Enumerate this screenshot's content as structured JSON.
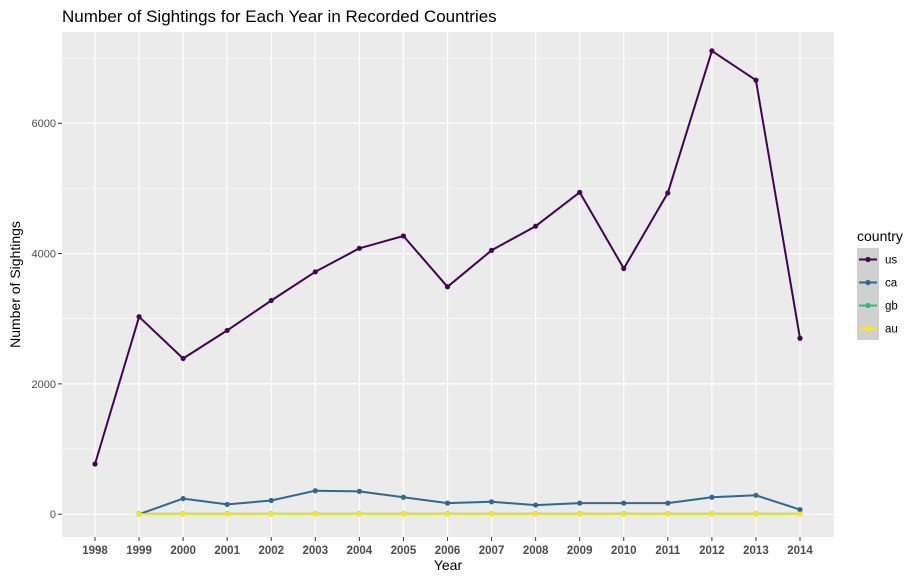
{
  "chart_data": {
    "type": "line",
    "title": "Number of Sightings for Each Year in Recorded Countries",
    "xlabel": "Year",
    "ylabel": "Number of Sightings",
    "x": [
      "1998",
      "1999",
      "2000",
      "2001",
      "2002",
      "2003",
      "2004",
      "2005",
      "2006",
      "2007",
      "2008",
      "2009",
      "2010",
      "2011",
      "2012",
      "2013",
      "2014"
    ],
    "yticks": [
      0,
      2000,
      4000,
      6000
    ],
    "ylim": [
      -350,
      7400
    ],
    "grid": true,
    "legend": {
      "title": "country",
      "position": "right"
    },
    "series": [
      {
        "name": "us",
        "color": "#440154",
        "values": [
          770,
          3030,
          2390,
          2820,
          3280,
          3720,
          4080,
          4270,
          3490,
          4050,
          4420,
          4940,
          3770,
          4930,
          7110,
          6660,
          2700
        ]
      },
      {
        "name": "ca",
        "color": "#31688e",
        "values": [
          null,
          0,
          240,
          150,
          210,
          360,
          350,
          260,
          170,
          190,
          140,
          170,
          170,
          170,
          260,
          290,
          70
        ]
      },
      {
        "name": "gb",
        "color": "#35b779",
        "values": [
          null,
          5,
          5,
          5,
          5,
          5,
          5,
          5,
          5,
          5,
          5,
          5,
          5,
          5,
          5,
          5,
          5
        ]
      },
      {
        "name": "au",
        "color": "#fde725",
        "values": [
          null,
          0,
          0,
          0,
          0,
          0,
          0,
          0,
          0,
          0,
          0,
          0,
          0,
          0,
          0,
          0,
          0
        ]
      }
    ]
  }
}
